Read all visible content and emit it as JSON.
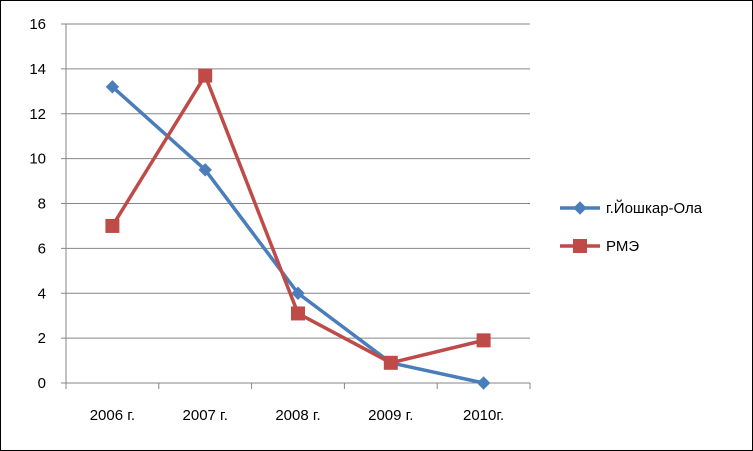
{
  "chart_data": {
    "type": "line",
    "categories": [
      "2006 г.",
      "2007 г.",
      "2008 г.",
      "2009 г.",
      "2010г."
    ],
    "ylim": [
      0,
      16
    ],
    "yticks": [
      0,
      2,
      4,
      6,
      8,
      10,
      12,
      14,
      16
    ],
    "ytick_labels": [
      "0",
      "2",
      "4",
      "6",
      "8",
      "10",
      "12",
      "14",
      "16"
    ],
    "grid": true,
    "legend_position": "right",
    "series": [
      {
        "name": "г.Йошкар-Ола",
        "values": [
          13.2,
          9.5,
          4.0,
          0.9,
          0.0
        ],
        "color": "#4A7EBB",
        "marker": "diamond"
      },
      {
        "name": "РМЭ",
        "values": [
          7.0,
          13.7,
          3.1,
          0.9,
          1.9
        ],
        "color": "#BE4B48",
        "marker": "square"
      }
    ]
  }
}
